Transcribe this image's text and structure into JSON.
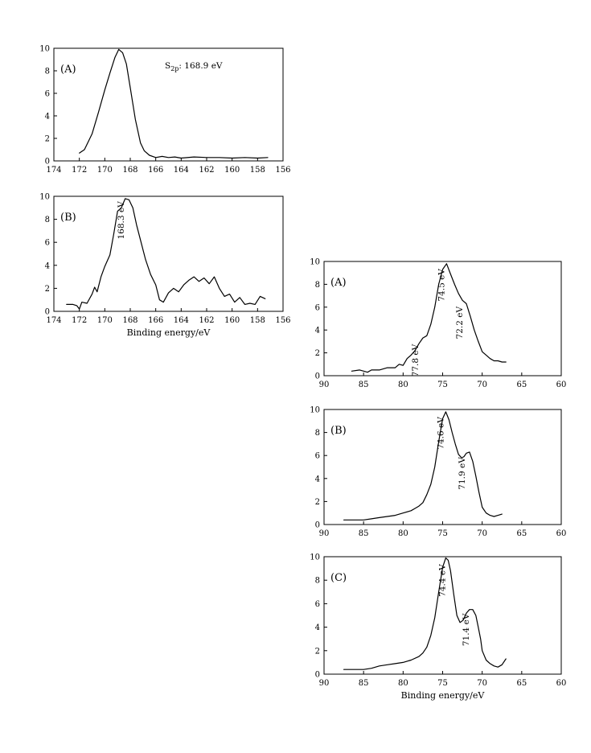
{
  "chart_data": [
    {
      "type": "line",
      "panel": "(A)",
      "annotation": "S2p: 168.9 eV",
      "annotation_main": "S",
      "annotation_sub": "2p",
      "annotation_rest": ": 168.9 eV",
      "xlim": [
        174,
        156
      ],
      "ylim": [
        0,
        10
      ],
      "xticks": [
        174,
        172,
        170,
        168,
        166,
        164,
        162,
        160,
        158,
        156
      ],
      "yticks": [
        0,
        2,
        4,
        6,
        8,
        10
      ],
      "xlabel": "",
      "series": [
        {
          "x": [
            172.0,
            171.6,
            171.0,
            170.5,
            170.0,
            169.6,
            169.2,
            168.9,
            168.6,
            168.3,
            168.0,
            167.6,
            167.2,
            166.9,
            166.5,
            166.0,
            165.5,
            165.0,
            164.5,
            164.0,
            163.0,
            162.0,
            161.0,
            160.0,
            159.0,
            158.0,
            157.2
          ],
          "y": [
            0.7,
            1.0,
            2.4,
            4.3,
            6.3,
            7.8,
            9.2,
            9.9,
            9.6,
            8.6,
            6.5,
            3.7,
            1.6,
            0.9,
            0.5,
            0.3,
            0.4,
            0.3,
            0.35,
            0.25,
            0.35,
            0.3,
            0.3,
            0.25,
            0.3,
            0.25,
            0.3
          ]
        }
      ]
    },
    {
      "type": "line",
      "panel": "(B)",
      "xlim": [
        174,
        156
      ],
      "ylim": [
        0,
        10
      ],
      "xticks": [
        174,
        172,
        170,
        168,
        166,
        164,
        162,
        160,
        158,
        156
      ],
      "yticks": [
        0,
        2,
        4,
        6,
        8,
        10
      ],
      "xlabel": "Binding energy/eV",
      "annotations": [
        {
          "text": "168.3 eV",
          "x": 168.3,
          "y": 9.7
        }
      ],
      "series": [
        {
          "x": [
            173.0,
            172.5,
            172.2,
            172.0,
            171.8,
            171.4,
            171.0,
            170.8,
            170.6,
            170.3,
            170.0,
            169.6,
            169.3,
            169.0,
            168.7,
            168.4,
            168.1,
            167.8,
            167.5,
            167.2,
            166.8,
            166.4,
            166.0,
            165.7,
            165.4,
            165.0,
            164.6,
            164.2,
            163.8,
            163.4,
            163.0,
            162.6,
            162.2,
            161.8,
            161.4,
            161.0,
            160.6,
            160.2,
            159.8,
            159.4,
            159.0,
            158.6,
            158.2,
            157.8,
            157.4
          ],
          "y": [
            0.6,
            0.6,
            0.5,
            0.2,
            0.8,
            0.7,
            1.5,
            2.1,
            1.7,
            3.0,
            3.9,
            4.9,
            6.7,
            8.7,
            9.0,
            9.8,
            9.7,
            9.0,
            7.5,
            6.2,
            4.5,
            3.2,
            2.3,
            1.0,
            0.8,
            1.6,
            2.0,
            1.7,
            2.3,
            2.7,
            3.0,
            2.6,
            2.9,
            2.4,
            3.0,
            2.0,
            1.3,
            1.5,
            0.8,
            1.2,
            0.6,
            0.7,
            0.6,
            1.3,
            1.1
          ]
        }
      ]
    },
    {
      "type": "line",
      "panel": "(A)",
      "xlim": [
        90,
        60
      ],
      "ylim": [
        0,
        10
      ],
      "xticks": [
        90,
        85,
        80,
        75,
        70,
        65,
        60
      ],
      "yticks": [
        0,
        2,
        4,
        6,
        8,
        10
      ],
      "xlabel": "",
      "annotations": [
        {
          "text": "74.5 eV",
          "x": 74.5,
          "y": 9.5
        },
        {
          "text": "72.2 eV",
          "x": 72.2,
          "y": 6.2
        },
        {
          "text": "77.8 eV",
          "x": 77.8,
          "y": 2.9
        }
      ],
      "series": [
        {
          "x": [
            86.5,
            85.5,
            84.5,
            84.0,
            83.0,
            82.0,
            81.0,
            80.5,
            80.0,
            79.5,
            79.0,
            78.5,
            78.0,
            77.5,
            77.0,
            76.5,
            76.0,
            75.5,
            75.0,
            74.5,
            74.0,
            73.5,
            73.0,
            72.5,
            72.0,
            71.5,
            71.0,
            70.5,
            70.0,
            69.5,
            69.0,
            68.5,
            68.0,
            67.5,
            67.0
          ],
          "y": [
            0.4,
            0.5,
            0.3,
            0.5,
            0.5,
            0.7,
            0.7,
            1.0,
            0.9,
            1.5,
            1.8,
            2.2,
            2.8,
            3.3,
            3.5,
            4.5,
            6.0,
            8.0,
            9.3,
            9.8,
            8.9,
            8.0,
            7.2,
            6.6,
            6.3,
            5.2,
            4.0,
            3.0,
            2.1,
            1.8,
            1.5,
            1.3,
            1.3,
            1.2,
            1.2
          ]
        }
      ]
    },
    {
      "type": "line",
      "panel": "(B)",
      "xlim": [
        90,
        60
      ],
      "ylim": [
        0,
        10
      ],
      "xticks": [
        90,
        85,
        80,
        75,
        70,
        65,
        60
      ],
      "yticks": [
        0,
        2,
        4,
        6,
        8,
        10
      ],
      "xlabel": "",
      "annotations": [
        {
          "text": "74.6 eV",
          "x": 74.6,
          "y": 9.5
        },
        {
          "text": "71.9 eV",
          "x": 71.9,
          "y": 6.0
        }
      ],
      "series": [
        {
          "x": [
            87.5,
            86.0,
            85.0,
            84.0,
            83.0,
            82.0,
            81.0,
            80.0,
            79.0,
            78.5,
            78.0,
            77.5,
            77.0,
            76.5,
            76.0,
            75.5,
            75.0,
            74.6,
            74.2,
            73.8,
            73.4,
            73.0,
            72.6,
            72.3,
            72.0,
            71.6,
            71.2,
            70.8,
            70.4,
            70.0,
            69.5,
            69.0,
            68.5,
            68.0,
            67.5
          ],
          "y": [
            0.4,
            0.4,
            0.4,
            0.5,
            0.6,
            0.7,
            0.8,
            1.0,
            1.2,
            1.4,
            1.6,
            1.9,
            2.6,
            3.5,
            5.0,
            7.2,
            9.2,
            9.8,
            9.1,
            8.0,
            7.0,
            6.1,
            5.8,
            5.9,
            6.2,
            6.3,
            5.5,
            4.2,
            2.8,
            1.5,
            1.0,
            0.8,
            0.7,
            0.8,
            0.9
          ]
        }
      ]
    },
    {
      "type": "line",
      "panel": "(C)",
      "xlim": [
        90,
        60
      ],
      "ylim": [
        0,
        10
      ],
      "xticks": [
        90,
        85,
        80,
        75,
        70,
        65,
        60
      ],
      "yticks": [
        0,
        2,
        4,
        6,
        8,
        10
      ],
      "xlabel": "Binding energy/eV",
      "annotations": [
        {
          "text": "74.4 eV",
          "x": 74.4,
          "y": 9.5
        },
        {
          "text": "71.4 eV",
          "x": 71.4,
          "y": 5.3
        }
      ],
      "series": [
        {
          "x": [
            87.5,
            86.0,
            85.0,
            84.0,
            83.0,
            82.0,
            81.0,
            80.0,
            79.0,
            78.0,
            77.5,
            77.0,
            76.5,
            76.0,
            75.5,
            75.0,
            74.6,
            74.3,
            74.0,
            73.6,
            73.2,
            72.8,
            72.4,
            72.0,
            71.6,
            71.2,
            70.8,
            70.5,
            70.2,
            70.0,
            69.5,
            69.0,
            68.5,
            68.0,
            67.5,
            67.0
          ],
          "y": [
            0.4,
            0.4,
            0.4,
            0.5,
            0.7,
            0.8,
            0.9,
            1.0,
            1.2,
            1.5,
            1.8,
            2.3,
            3.3,
            4.8,
            7.0,
            9.1,
            9.9,
            9.7,
            8.8,
            6.8,
            5.0,
            4.4,
            4.6,
            5.2,
            5.5,
            5.5,
            5.0,
            4.0,
            3.0,
            2.0,
            1.2,
            0.9,
            0.7,
            0.6,
            0.8,
            1.3
          ]
        }
      ]
    }
  ]
}
